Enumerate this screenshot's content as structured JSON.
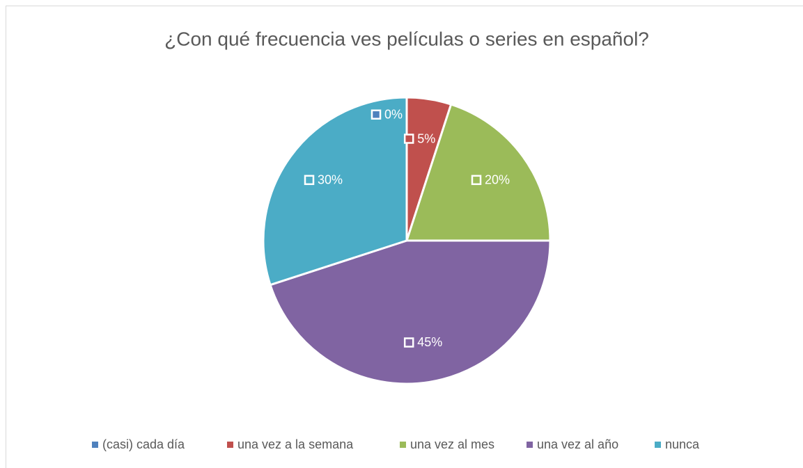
{
  "chart_data": {
    "type": "pie",
    "title": "¿Con qué frecuencia ves películas o series en español?",
    "categories": [
      "(casi) cada día",
      "una vez a la semana",
      "una vez al mes",
      "una vez al año",
      "nunca"
    ],
    "values": [
      0,
      5,
      20,
      45,
      30
    ],
    "value_labels": [
      "0%",
      "5%",
      "20%",
      "45%",
      "30%"
    ],
    "colors": [
      "#4f81bd",
      "#c0504d",
      "#9bbb59",
      "#8064a2",
      "#4bacc6"
    ],
    "legend": "bottom"
  }
}
